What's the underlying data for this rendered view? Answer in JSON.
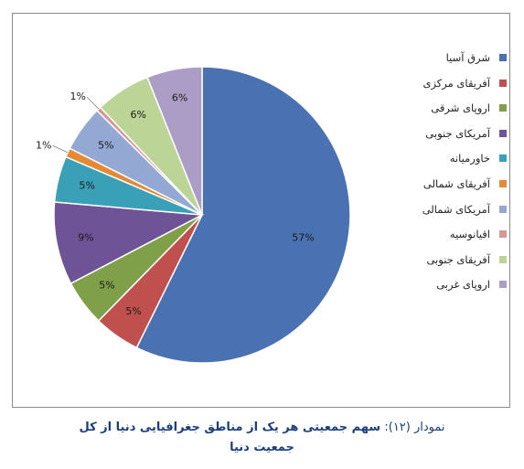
{
  "chart_data": {
    "type": "pie",
    "slices": [
      {
        "label": "شرق آسیا",
        "value": 57,
        "data_label": "57%",
        "color": "#4a72b2"
      },
      {
        "label": "آفریقای مرکزی",
        "value": 5,
        "data_label": "5%",
        "color": "#c0504d"
      },
      {
        "label": "اروپای شرقی",
        "value": 5,
        "data_label": "5%",
        "color": "#7f9f48"
      },
      {
        "label": "آمریکای جنوبی",
        "value": 9,
        "data_label": "9%",
        "color": "#6e5497"
      },
      {
        "label": "خاورمیانه",
        "value": 5,
        "data_label": "5%",
        "color": "#3aa0b8"
      },
      {
        "label": "آفریقای شمالی",
        "value": 1,
        "data_label": "1%",
        "color": "#e48a34"
      },
      {
        "label": "آمریکای شمالی",
        "value": 5,
        "data_label": "5%",
        "color": "#93a9d4"
      },
      {
        "label": "اقیانوسیه",
        "value": 0.5,
        "data_label": "1%",
        "color": "#d49896"
      },
      {
        "label": "آفریقای جنوبی",
        "value": 6,
        "data_label": "6%",
        "color": "#bcd596"
      },
      {
        "label": "اروپای غربی",
        "value": 6,
        "data_label": "6%",
        "color": "#ab9dc6"
      }
    ],
    "legend_placement": "right"
  },
  "caption": {
    "prefix": "نمودار (۱۲):",
    "title_line1": "سهم جمعیتی هر یک از مناطق جغرافیایی دنیا از کل",
    "title_line2": "جمعیت دنیا"
  }
}
